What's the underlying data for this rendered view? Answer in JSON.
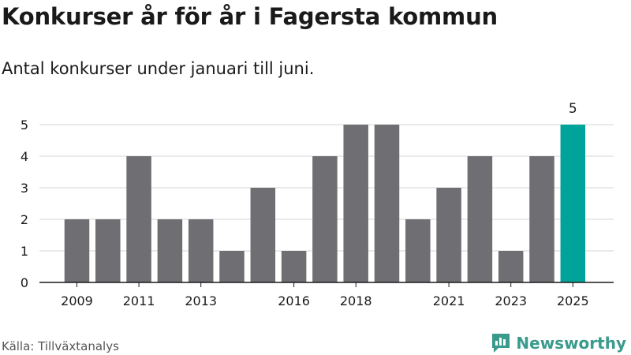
{
  "header": {
    "title": "Konkurser år för år i Fagersta kommun",
    "subtitle": "Antal konkurser under januari till juni."
  },
  "footer": {
    "source": "Källa: Tillväxtanalys",
    "brand": "Newsworthy"
  },
  "colors": {
    "bar": "#6e6e73",
    "highlight": "#00a39a",
    "brand": "#3a9a8c"
  },
  "chart_data": {
    "type": "bar",
    "x": [
      2009,
      2010,
      2011,
      2012,
      2013,
      2014,
      2015,
      2016,
      2017,
      2018,
      2019,
      2020,
      2021,
      2022,
      2023,
      2024,
      2025
    ],
    "values": [
      2,
      2,
      4,
      2,
      2,
      1,
      3,
      1,
      4,
      5,
      5,
      2,
      3,
      4,
      1,
      4,
      5
    ],
    "x_tick_labels": [
      "2009",
      "2011",
      "2013",
      "2016",
      "2018",
      "2021",
      "2023",
      "2025"
    ],
    "y_ticks": [
      0,
      1,
      2,
      3,
      4,
      5
    ],
    "ylim": [
      0,
      5
    ],
    "highlight": {
      "x": 2025,
      "label": "5"
    },
    "grid": "horizontal"
  }
}
